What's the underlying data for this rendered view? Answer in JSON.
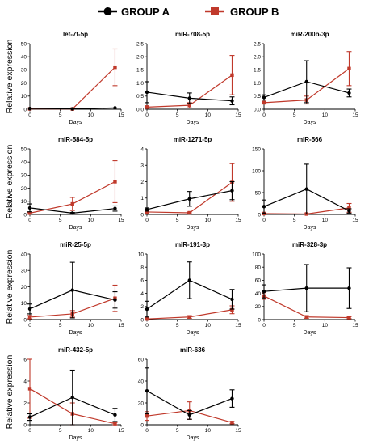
{
  "legend": {
    "group_a": {
      "label": "GROUP A",
      "color": "#000000",
      "marker": "circle"
    },
    "group_b": {
      "label": "GROUP B",
      "color": "#c0392b",
      "marker": "square"
    }
  },
  "chart_data": [
    {
      "type": "line",
      "title": "let-7f-5p",
      "xlabel": "",
      "ylabel": "Relative expression",
      "x": [
        0,
        7,
        14
      ],
      "xticks": [
        0,
        5,
        10,
        15
      ],
      "xlim": [
        0,
        15
      ],
      "ylim": [
        0,
        50
      ],
      "yticks": [
        0,
        10,
        20,
        30,
        40,
        50
      ],
      "series": [
        {
          "name": "GROUP A",
          "values": [
            0.5,
            0.3,
            1
          ],
          "err": [
            0,
            0,
            0
          ]
        },
        {
          "name": "GROUP B",
          "values": [
            0.3,
            0.2,
            32
          ],
          "err": [
            0,
            0,
            14
          ]
        }
      ]
    },
    {
      "type": "line",
      "title": "miR-708-5p",
      "xlabel": "",
      "ylabel": "",
      "x": [
        0,
        7,
        14
      ],
      "xticks": [
        0,
        5,
        10,
        15
      ],
      "xlim": [
        0,
        15
      ],
      "ylim": [
        0,
        2.5
      ],
      "yticks": [
        0.0,
        0.5,
        1.0,
        1.5,
        2.0,
        2.5
      ],
      "ytick_decimals": 1,
      "series": [
        {
          "name": "GROUP A",
          "values": [
            0.65,
            0.42,
            0.32
          ],
          "err": [
            0.4,
            0.2,
            0.15
          ]
        },
        {
          "name": "GROUP B",
          "values": [
            0.08,
            0.15,
            1.3
          ],
          "err": [
            0.05,
            0.1,
            0.75
          ]
        }
      ]
    },
    {
      "type": "line",
      "title": "miR-200b-3p",
      "xlabel": "",
      "ylabel": "",
      "x": [
        0,
        7,
        14
      ],
      "xticks": [
        0,
        5,
        10,
        15
      ],
      "xlim": [
        0,
        15
      ],
      "ylim": [
        0,
        2.5
      ],
      "yticks": [
        0.0,
        0.5,
        1.0,
        1.5,
        2.0,
        2.5
      ],
      "ytick_decimals": 1,
      "series": [
        {
          "name": "GROUP A",
          "values": [
            0.45,
            1.05,
            0.62
          ],
          "err": [
            0.1,
            0.8,
            0.15
          ]
        },
        {
          "name": "GROUP B",
          "values": [
            0.25,
            0.35,
            1.55
          ],
          "err": [
            0.05,
            0.15,
            0.65
          ]
        }
      ]
    },
    {
      "type": "line",
      "title": "miR-584-5p",
      "xlabel": "",
      "ylabel": "Relative expression",
      "x": [
        0,
        7,
        14
      ],
      "xticks": [
        0,
        5,
        10,
        15
      ],
      "xlim": [
        0,
        15
      ],
      "ylim": [
        0,
        50
      ],
      "yticks": [
        0,
        10,
        20,
        30,
        40,
        50
      ],
      "series": [
        {
          "name": "GROUP A",
          "values": [
            5,
            1,
            4.5
          ],
          "err": [
            3,
            0.5,
            2
          ]
        },
        {
          "name": "GROUP B",
          "values": [
            1,
            8,
            25
          ],
          "err": [
            0.5,
            5,
            16
          ]
        }
      ]
    },
    {
      "type": "line",
      "title": "miR-1271-5p",
      "xlabel": "",
      "ylabel": "",
      "x": [
        0,
        7,
        14
      ],
      "xticks": [
        0,
        5,
        10,
        15
      ],
      "xlim": [
        0,
        15
      ],
      "ylim": [
        0,
        4
      ],
      "yticks": [
        0,
        1,
        2,
        3,
        4
      ],
      "series": [
        {
          "name": "GROUP A",
          "values": [
            0.3,
            0.95,
            1.45
          ],
          "err": [
            0.1,
            0.45,
            0.55
          ]
        },
        {
          "name": "GROUP B",
          "values": [
            0.15,
            0.1,
            1.95
          ],
          "err": [
            0.1,
            0.05,
            1.15
          ]
        }
      ]
    },
    {
      "type": "line",
      "title": "miR-566",
      "xlabel": "",
      "ylabel": "",
      "x": [
        0,
        7,
        14
      ],
      "xticks": [
        0,
        5,
        10,
        15
      ],
      "xlim": [
        0,
        15
      ],
      "ylim": [
        0,
        150
      ],
      "yticks": [
        0,
        50,
        100,
        150
      ],
      "series": [
        {
          "name": "GROUP A",
          "values": [
            18,
            58,
            8
          ],
          "err": [
            15,
            57,
            5
          ]
        },
        {
          "name": "GROUP B",
          "values": [
            2,
            1,
            15
          ],
          "err": [
            1,
            0.5,
            10
          ]
        }
      ]
    },
    {
      "type": "line",
      "title": "miR-25-5p",
      "xlabel": "",
      "ylabel": "Relative expression",
      "x": [
        0,
        7,
        14
      ],
      "xticks": [
        0,
        5,
        10,
        15
      ],
      "xlim": [
        0,
        15
      ],
      "ylim": [
        0,
        40
      ],
      "yticks": [
        0,
        10,
        20,
        30,
        40
      ],
      "series": [
        {
          "name": "GROUP A",
          "values": [
            6.5,
            18,
            12
          ],
          "err": [
            3,
            17,
            5
          ]
        },
        {
          "name": "GROUP B",
          "values": [
            1.5,
            3.5,
            13
          ],
          "err": [
            1,
            2,
            8
          ]
        }
      ]
    },
    {
      "type": "line",
      "title": "miR-191-3p",
      "xlabel": "",
      "ylabel": "",
      "x": [
        0,
        7,
        14
      ],
      "xticks": [
        0,
        5,
        10,
        15
      ],
      "xlim": [
        0,
        15
      ],
      "ylim": [
        0,
        10
      ],
      "yticks": [
        0,
        2,
        4,
        6,
        8,
        10
      ],
      "series": [
        {
          "name": "GROUP A",
          "values": [
            1.6,
            6.0,
            3.1
          ],
          "err": [
            1.2,
            2.8,
            1.5
          ]
        },
        {
          "name": "GROUP B",
          "values": [
            0.1,
            0.4,
            1.5
          ],
          "err": [
            0.05,
            0.2,
            0.6
          ]
        }
      ]
    },
    {
      "type": "line",
      "title": "miR-328-3p",
      "xlabel": "",
      "ylabel": "",
      "x": [
        0,
        7,
        14
      ],
      "xticks": [
        0,
        5,
        10,
        15
      ],
      "xlim": [
        0,
        15
      ],
      "ylim": [
        0,
        100
      ],
      "yticks": [
        0,
        20,
        40,
        60,
        80,
        100
      ],
      "series": [
        {
          "name": "GROUP A",
          "values": [
            43,
            48,
            48
          ],
          "err": [
            10,
            36,
            31
          ]
        },
        {
          "name": "GROUP B",
          "values": [
            36,
            4,
            3
          ],
          "err": [
            5,
            2,
            1.5
          ]
        }
      ]
    },
    {
      "type": "line",
      "title": "miR-432-5p",
      "xlabel": "Days",
      "ylabel": "Relative expression",
      "x": [
        0,
        7,
        14
      ],
      "xticks": [
        0,
        5,
        10,
        15
      ],
      "xlim": [
        0,
        15
      ],
      "ylim": [
        0,
        6
      ],
      "yticks": [
        0,
        2,
        4,
        6
      ],
      "series": [
        {
          "name": "GROUP A",
          "values": [
            0.7,
            2.5,
            0.9
          ],
          "err": [
            0.3,
            2.5,
            0.6
          ]
        },
        {
          "name": "GROUP B",
          "values": [
            3.3,
            1.0,
            0.1
          ],
          "err": [
            2.7,
            1.0,
            0.1
          ]
        }
      ]
    },
    {
      "type": "line",
      "title": "miR-636",
      "xlabel": "Days",
      "ylabel": "",
      "x": [
        0,
        7,
        14
      ],
      "xticks": [
        0,
        5,
        10,
        15
      ],
      "xlim": [
        0,
        15
      ],
      "ylim": [
        0,
        60
      ],
      "yticks": [
        0,
        20,
        40,
        60
      ],
      "series": [
        {
          "name": "GROUP A",
          "values": [
            31,
            9,
            24
          ],
          "err": [
            21,
            4,
            8
          ]
        },
        {
          "name": "GROUP B",
          "values": [
            8,
            13,
            2
          ],
          "err": [
            4,
            8,
            1
          ]
        }
      ]
    }
  ],
  "days_labels": [
    "Days",
    "Days",
    "Days",
    "Days",
    "Days",
    "Days",
    "Days",
    "Days",
    "Days"
  ]
}
